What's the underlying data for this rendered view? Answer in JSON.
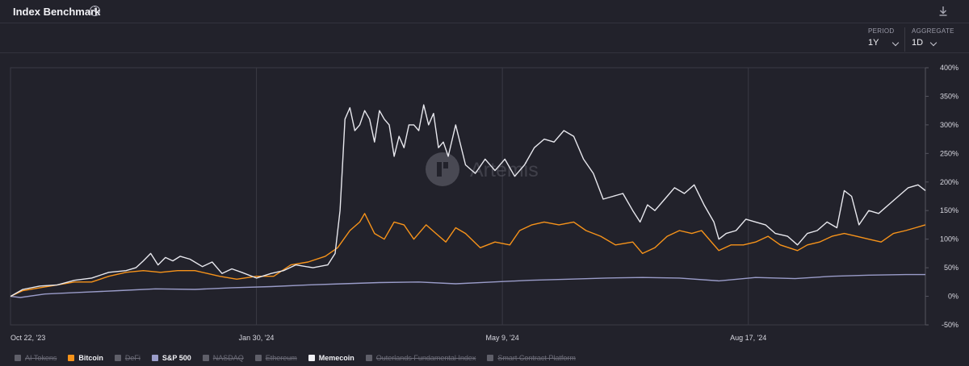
{
  "header": {
    "title": "Index Benchmark",
    "info_icon": "info-icon",
    "download_icon": "download-icon"
  },
  "controls": {
    "period_label": "PERIOD",
    "period_value": "1Y",
    "aggregate_label": "AGGREGATE",
    "aggregate_value": "1D"
  },
  "watermark": {
    "text": "Artemis",
    "icon": "artemis-logo-icon"
  },
  "legend": [
    {
      "name": "AI Tokens",
      "active": false,
      "color": "#5f5f69"
    },
    {
      "name": "Bitcoin",
      "active": true,
      "color": "#f7931a"
    },
    {
      "name": "DeFi",
      "active": false,
      "color": "#5f5f69"
    },
    {
      "name": "S&P 500",
      "active": true,
      "color": "#9a9cc9"
    },
    {
      "name": "NASDAQ",
      "active": false,
      "color": "#5f5f69"
    },
    {
      "name": "Ethereum",
      "active": false,
      "color": "#5f5f69"
    },
    {
      "name": "Memecoin",
      "active": true,
      "color": "#f0f0f4"
    },
    {
      "name": "Outerlands Fundamental Index",
      "active": false,
      "color": "#5f5f69"
    },
    {
      "name": "Smart Contract Platform",
      "active": false,
      "color": "#5f5f69"
    }
  ],
  "chart_data": {
    "type": "line",
    "x_labels": [
      "Oct 22, '23",
      "Jan 30, '24",
      "May 9, '24",
      "Aug 17, '24"
    ],
    "x_label_dates": [
      "2023-10-22",
      "2024-01-30",
      "2024-05-09",
      "2024-08-17"
    ],
    "x_range": [
      "2023-10-22",
      "2024-10-28"
    ],
    "y_ticks": [
      "400%",
      "350%",
      "300%",
      "250%",
      "200%",
      "150%",
      "100%",
      "50%",
      "0%",
      "-50%"
    ],
    "ylim": [
      -50,
      400
    ],
    "y_unit": "%",
    "grid": true,
    "legend_placement": "bottom-left",
    "series": [
      {
        "name": "Memecoin",
        "color": "#e8e8ee",
        "points": [
          [
            "2023-10-22",
            0
          ],
          [
            "2023-10-27",
            12
          ],
          [
            "2023-11-03",
            18
          ],
          [
            "2023-11-10",
            20
          ],
          [
            "2023-11-17",
            28
          ],
          [
            "2023-11-24",
            32
          ],
          [
            "2023-12-01",
            42
          ],
          [
            "2023-12-08",
            45
          ],
          [
            "2023-12-12",
            50
          ],
          [
            "2023-12-15",
            62
          ],
          [
            "2023-12-18",
            75
          ],
          [
            "2023-12-21",
            55
          ],
          [
            "2023-12-24",
            68
          ],
          [
            "2023-12-27",
            62
          ],
          [
            "2023-12-30",
            70
          ],
          [
            "2024-01-03",
            65
          ],
          [
            "2024-01-08",
            52
          ],
          [
            "2024-01-12",
            60
          ],
          [
            "2024-01-16",
            40
          ],
          [
            "2024-01-20",
            48
          ],
          [
            "2024-01-24",
            42
          ],
          [
            "2024-01-30",
            32
          ],
          [
            "2024-02-05",
            40
          ],
          [
            "2024-02-10",
            45
          ],
          [
            "2024-02-15",
            55
          ],
          [
            "2024-02-22",
            50
          ],
          [
            "2024-02-28",
            55
          ],
          [
            "2024-03-02",
            75
          ],
          [
            "2024-03-04",
            150
          ],
          [
            "2024-03-05",
            230
          ],
          [
            "2024-03-06",
            310
          ],
          [
            "2024-03-08",
            330
          ],
          [
            "2024-03-10",
            290
          ],
          [
            "2024-03-12",
            300
          ],
          [
            "2024-03-14",
            325
          ],
          [
            "2024-03-16",
            310
          ],
          [
            "2024-03-18",
            270
          ],
          [
            "2024-03-20",
            325
          ],
          [
            "2024-03-22",
            310
          ],
          [
            "2024-03-24",
            300
          ],
          [
            "2024-03-26",
            245
          ],
          [
            "2024-03-28",
            280
          ],
          [
            "2024-03-30",
            260
          ],
          [
            "2024-04-01",
            300
          ],
          [
            "2024-04-03",
            300
          ],
          [
            "2024-04-05",
            290
          ],
          [
            "2024-04-07",
            335
          ],
          [
            "2024-04-09",
            300
          ],
          [
            "2024-04-11",
            320
          ],
          [
            "2024-04-13",
            260
          ],
          [
            "2024-04-15",
            270
          ],
          [
            "2024-04-17",
            245
          ],
          [
            "2024-04-20",
            300
          ],
          [
            "2024-04-24",
            230
          ],
          [
            "2024-04-28",
            215
          ],
          [
            "2024-05-02",
            240
          ],
          [
            "2024-05-06",
            220
          ],
          [
            "2024-05-10",
            240
          ],
          [
            "2024-05-14",
            210
          ],
          [
            "2024-05-18",
            230
          ],
          [
            "2024-05-22",
            260
          ],
          [
            "2024-05-26",
            275
          ],
          [
            "2024-05-30",
            270
          ],
          [
            "2024-06-03",
            290
          ],
          [
            "2024-06-07",
            280
          ],
          [
            "2024-06-11",
            240
          ],
          [
            "2024-06-15",
            215
          ],
          [
            "2024-06-19",
            170
          ],
          [
            "2024-06-23",
            175
          ],
          [
            "2024-06-27",
            180
          ],
          [
            "2024-07-01",
            150
          ],
          [
            "2024-07-04",
            130
          ],
          [
            "2024-07-07",
            160
          ],
          [
            "2024-07-10",
            150
          ],
          [
            "2024-07-14",
            170
          ],
          [
            "2024-07-18",
            190
          ],
          [
            "2024-07-22",
            180
          ],
          [
            "2024-07-26",
            195
          ],
          [
            "2024-07-30",
            160
          ],
          [
            "2024-08-03",
            130
          ],
          [
            "2024-08-05",
            100
          ],
          [
            "2024-08-08",
            110
          ],
          [
            "2024-08-12",
            115
          ],
          [
            "2024-08-16",
            135
          ],
          [
            "2024-08-20",
            130
          ],
          [
            "2024-08-24",
            125
          ],
          [
            "2024-08-28",
            110
          ],
          [
            "2024-09-02",
            105
          ],
          [
            "2024-09-06",
            90
          ],
          [
            "2024-09-10",
            110
          ],
          [
            "2024-09-14",
            115
          ],
          [
            "2024-09-18",
            130
          ],
          [
            "2024-09-22",
            120
          ],
          [
            "2024-09-25",
            185
          ],
          [
            "2024-09-28",
            175
          ],
          [
            "2024-10-01",
            125
          ],
          [
            "2024-10-05",
            150
          ],
          [
            "2024-10-09",
            145
          ],
          [
            "2024-10-13",
            160
          ],
          [
            "2024-10-17",
            175
          ],
          [
            "2024-10-21",
            190
          ],
          [
            "2024-10-25",
            195
          ],
          [
            "2024-10-28",
            185
          ]
        ]
      },
      {
        "name": "Bitcoin",
        "color": "#f7931a",
        "points": [
          [
            "2023-10-22",
            0
          ],
          [
            "2023-10-27",
            10
          ],
          [
            "2023-11-03",
            15
          ],
          [
            "2023-11-10",
            20
          ],
          [
            "2023-11-17",
            25
          ],
          [
            "2023-11-24",
            25
          ],
          [
            "2023-12-01",
            35
          ],
          [
            "2023-12-08",
            42
          ],
          [
            "2023-12-15",
            45
          ],
          [
            "2023-12-22",
            42
          ],
          [
            "2023-12-29",
            45
          ],
          [
            "2024-01-05",
            45
          ],
          [
            "2024-01-10",
            40
          ],
          [
            "2024-01-15",
            35
          ],
          [
            "2024-01-22",
            30
          ],
          [
            "2024-01-30",
            35
          ],
          [
            "2024-02-06",
            35
          ],
          [
            "2024-02-13",
            55
          ],
          [
            "2024-02-20",
            60
          ],
          [
            "2024-02-27",
            70
          ],
          [
            "2024-03-03",
            85
          ],
          [
            "2024-03-08",
            115
          ],
          [
            "2024-03-12",
            130
          ],
          [
            "2024-03-14",
            145
          ],
          [
            "2024-03-18",
            110
          ],
          [
            "2024-03-22",
            100
          ],
          [
            "2024-03-26",
            130
          ],
          [
            "2024-03-30",
            125
          ],
          [
            "2024-04-03",
            100
          ],
          [
            "2024-04-08",
            125
          ],
          [
            "2024-04-12",
            110
          ],
          [
            "2024-04-16",
            95
          ],
          [
            "2024-04-20",
            120
          ],
          [
            "2024-04-24",
            110
          ],
          [
            "2024-04-30",
            85
          ],
          [
            "2024-05-06",
            95
          ],
          [
            "2024-05-12",
            90
          ],
          [
            "2024-05-16",
            115
          ],
          [
            "2024-05-21",
            125
          ],
          [
            "2024-05-26",
            130
          ],
          [
            "2024-06-01",
            125
          ],
          [
            "2024-06-07",
            130
          ],
          [
            "2024-06-12",
            115
          ],
          [
            "2024-06-18",
            105
          ],
          [
            "2024-06-24",
            90
          ],
          [
            "2024-07-01",
            95
          ],
          [
            "2024-07-05",
            75
          ],
          [
            "2024-07-10",
            85
          ],
          [
            "2024-07-15",
            105
          ],
          [
            "2024-07-20",
            115
          ],
          [
            "2024-07-25",
            110
          ],
          [
            "2024-07-29",
            115
          ],
          [
            "2024-08-05",
            80
          ],
          [
            "2024-08-10",
            90
          ],
          [
            "2024-08-15",
            90
          ],
          [
            "2024-08-20",
            95
          ],
          [
            "2024-08-25",
            105
          ],
          [
            "2024-08-30",
            90
          ],
          [
            "2024-09-06",
            80
          ],
          [
            "2024-09-10",
            90
          ],
          [
            "2024-09-15",
            95
          ],
          [
            "2024-09-20",
            105
          ],
          [
            "2024-09-25",
            110
          ],
          [
            "2024-09-30",
            105
          ],
          [
            "2024-10-05",
            100
          ],
          [
            "2024-10-10",
            95
          ],
          [
            "2024-10-15",
            110
          ],
          [
            "2024-10-20",
            115
          ],
          [
            "2024-10-24",
            120
          ],
          [
            "2024-10-28",
            125
          ]
        ]
      },
      {
        "name": "S&P 500",
        "color": "#9a9cc9",
        "points": [
          [
            "2023-10-22",
            0
          ],
          [
            "2023-10-26",
            -2
          ],
          [
            "2023-11-05",
            4
          ],
          [
            "2023-11-20",
            7
          ],
          [
            "2023-12-05",
            10
          ],
          [
            "2023-12-20",
            13
          ],
          [
            "2024-01-05",
            12
          ],
          [
            "2024-01-20",
            15
          ],
          [
            "2024-02-05",
            17
          ],
          [
            "2024-02-20",
            20
          ],
          [
            "2024-03-05",
            22
          ],
          [
            "2024-03-20",
            24
          ],
          [
            "2024-04-05",
            25
          ],
          [
            "2024-04-20",
            22
          ],
          [
            "2024-05-05",
            25
          ],
          [
            "2024-05-20",
            28
          ],
          [
            "2024-06-05",
            30
          ],
          [
            "2024-06-20",
            32
          ],
          [
            "2024-07-05",
            33
          ],
          [
            "2024-07-20",
            32
          ],
          [
            "2024-08-05",
            27
          ],
          [
            "2024-08-20",
            33
          ],
          [
            "2024-09-05",
            31
          ],
          [
            "2024-09-20",
            35
          ],
          [
            "2024-10-05",
            37
          ],
          [
            "2024-10-20",
            38
          ],
          [
            "2024-10-28",
            38
          ]
        ]
      }
    ]
  }
}
